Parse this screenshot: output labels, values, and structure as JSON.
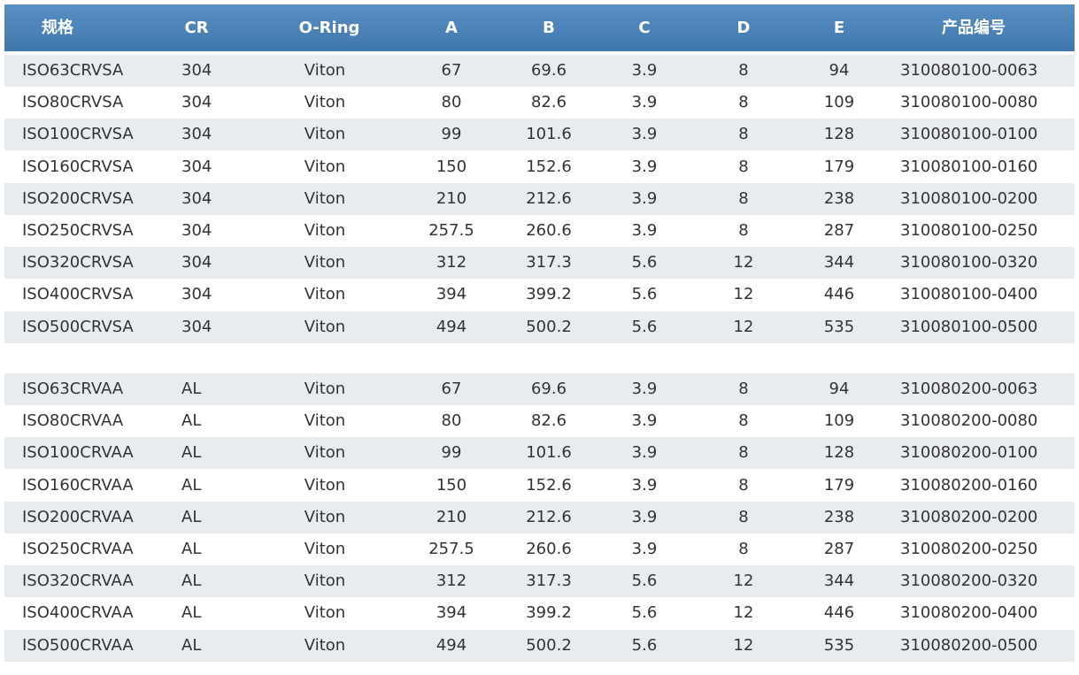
{
  "table": {
    "header": [
      "规格",
      "CR",
      "O-Ring",
      "A",
      "B",
      "C",
      "D",
      "E",
      "产品编号"
    ],
    "groups": [
      {
        "rows": [
          [
            "ISO63CRVSA",
            "304",
            "Viton",
            "67",
            "69.6",
            "3.9",
            "8",
            "94",
            "310080100-0063"
          ],
          [
            "ISO80CRVSA",
            "304",
            "Viton",
            "80",
            "82.6",
            "3.9",
            "8",
            "109",
            "310080100-0080"
          ],
          [
            "ISO100CRVSA",
            "304",
            "Viton",
            "99",
            "101.6",
            "3.9",
            "8",
            "128",
            "310080100-0100"
          ],
          [
            "ISO160CRVSA",
            "304",
            "Viton",
            "150",
            "152.6",
            "3.9",
            "8",
            "179",
            "310080100-0160"
          ],
          [
            "ISO200CRVSA",
            "304",
            "Viton",
            "210",
            "212.6",
            "3.9",
            "8",
            "238",
            "310080100-0200"
          ],
          [
            "ISO250CRVSA",
            "304",
            "Viton",
            "257.5",
            "260.6",
            "3.9",
            "8",
            "287",
            "310080100-0250"
          ],
          [
            "ISO320CRVSA",
            "304",
            "Viton",
            "312",
            "317.3",
            "5.6",
            "12",
            "344",
            "310080100-0320"
          ],
          [
            "ISO400CRVSA",
            "304",
            "Viton",
            "394",
            "399.2",
            "5.6",
            "12",
            "446",
            "310080100-0400"
          ],
          [
            "ISO500CRVSA",
            "304",
            "Viton",
            "494",
            "500.2",
            "5.6",
            "12",
            "535",
            "310080100-0500"
          ]
        ]
      },
      {
        "rows": [
          [
            "ISO63CRVAA",
            "AL",
            "Viton",
            "67",
            "69.6",
            "3.9",
            "8",
            "94",
            "310080200-0063"
          ],
          [
            "ISO80CRVAA",
            "AL",
            "Viton",
            "80",
            "82.6",
            "3.9",
            "8",
            "109",
            "310080200-0080"
          ],
          [
            "ISO100CRVAA",
            "AL",
            "Viton",
            "99",
            "101.6",
            "3.9",
            "8",
            "128",
            "310080200-0100"
          ],
          [
            "ISO160CRVAA",
            "AL",
            "Viton",
            "150",
            "152.6",
            "3.9",
            "8",
            "179",
            "310080200-0160"
          ],
          [
            "ISO200CRVAA",
            "AL",
            "Viton",
            "210",
            "212.6",
            "3.9",
            "8",
            "238",
            "310080200-0200"
          ],
          [
            "ISO250CRVAA",
            "AL",
            "Viton",
            "257.5",
            "260.6",
            "3.9",
            "8",
            "287",
            "310080200-0250"
          ],
          [
            "ISO320CRVAA",
            "AL",
            "Viton",
            "312",
            "317.3",
            "5.6",
            "12",
            "344",
            "310080200-0320"
          ],
          [
            "ISO400CRVAA",
            "AL",
            "Viton",
            "394",
            "399.2",
            "5.6",
            "12",
            "446",
            "310080200-0400"
          ],
          [
            "ISO500CRVAA",
            "AL",
            "Viton",
            "494",
            "500.2",
            "5.6",
            "12",
            "535",
            "310080200-0500"
          ]
        ]
      }
    ]
  }
}
